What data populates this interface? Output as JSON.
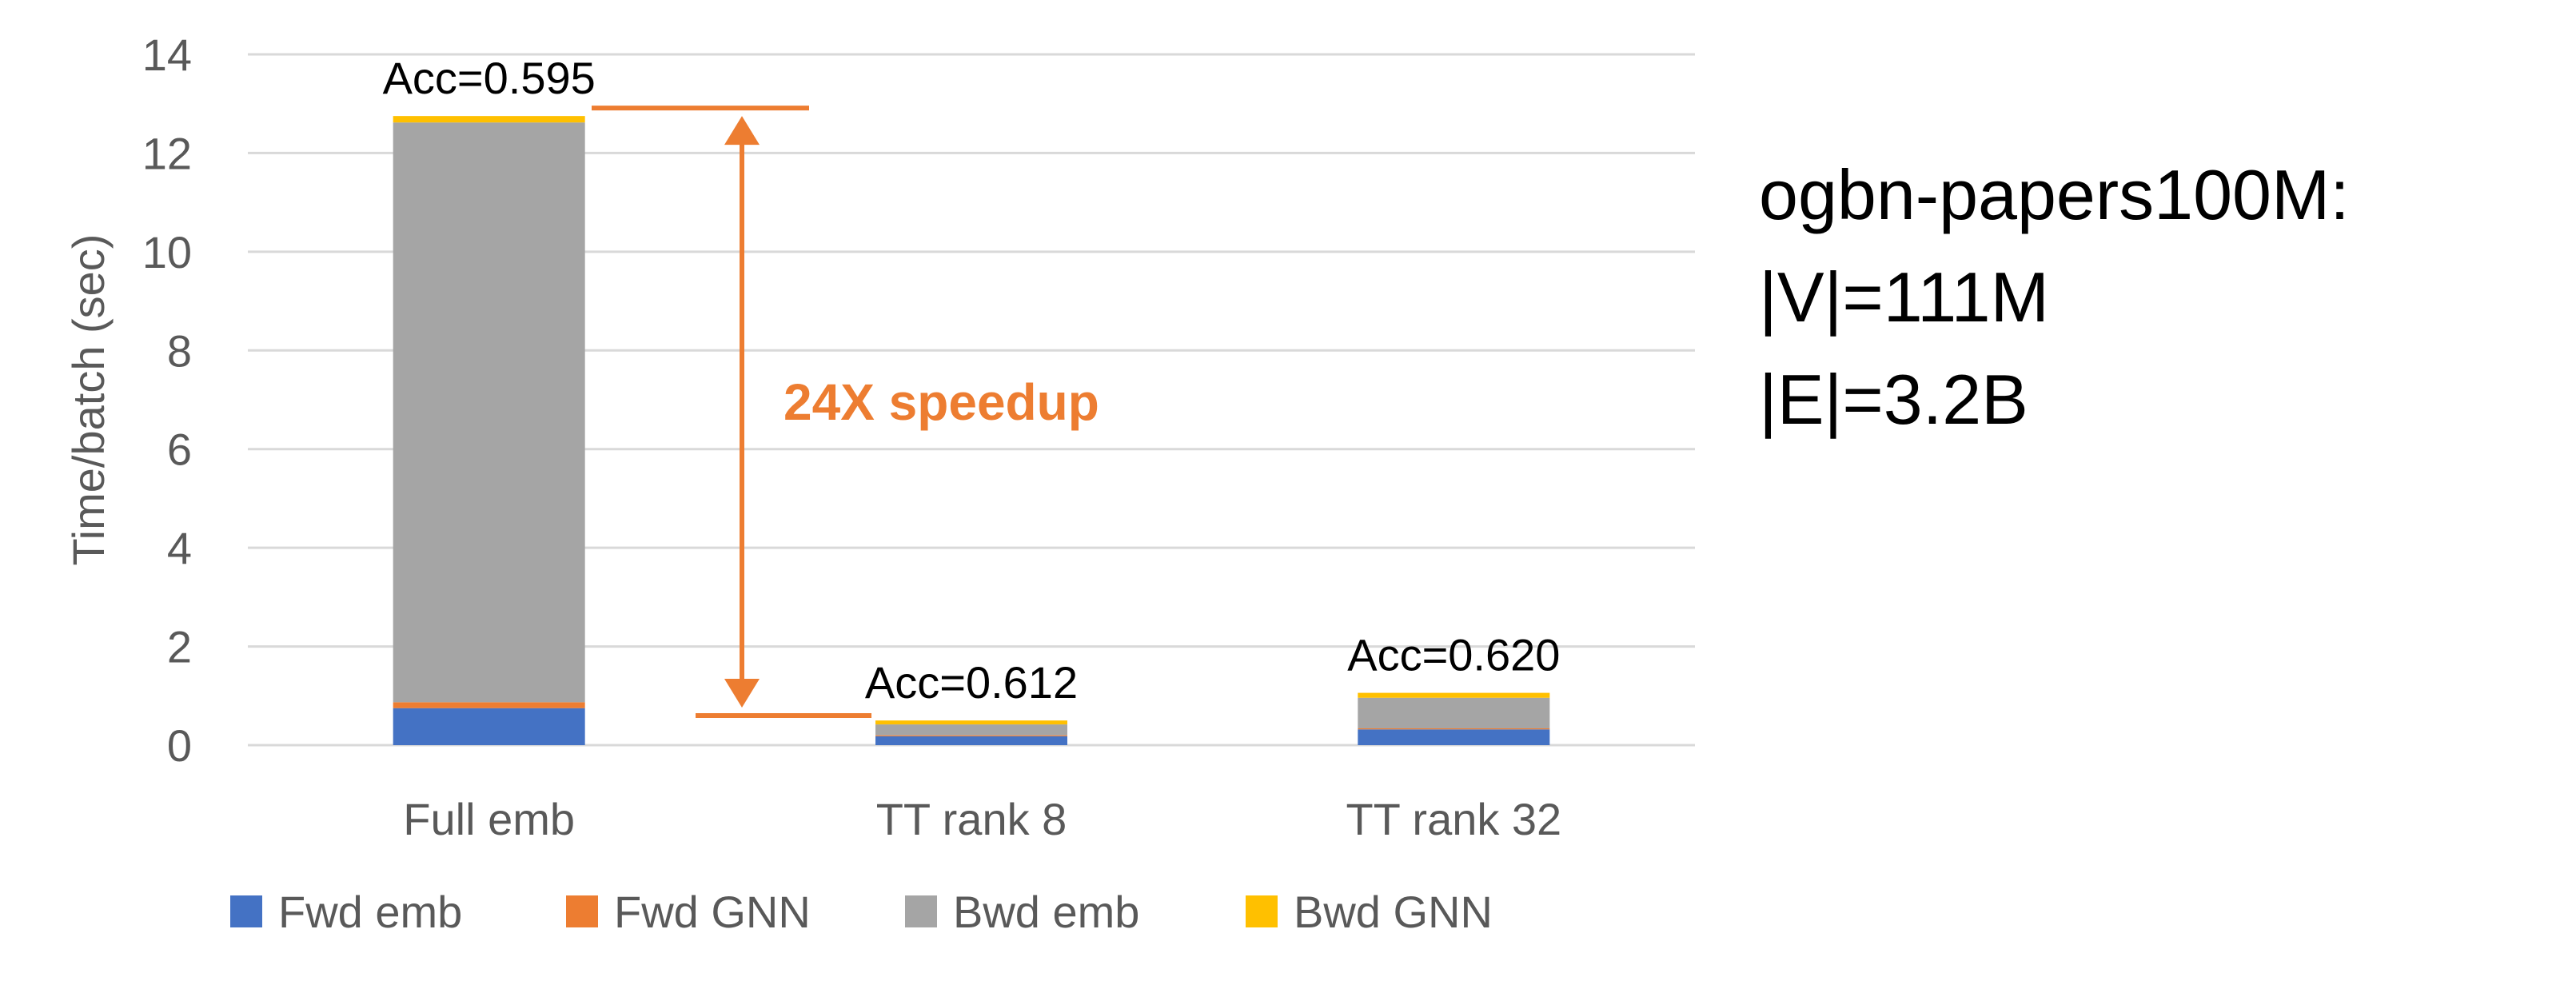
{
  "chart_data": {
    "type": "bar",
    "stacked": true,
    "categories": [
      "Full emb",
      "TT rank 8",
      "TT rank 32"
    ],
    "series": [
      {
        "name": "Fwd emb",
        "color": "#4472C4",
        "values": [
          0.75,
          0.18,
          0.32
        ]
      },
      {
        "name": "Fwd GNN",
        "color": "#ED7D31",
        "values": [
          0.12,
          0.02,
          0.02
        ]
      },
      {
        "name": "Bwd emb",
        "color": "#A5A5A5",
        "values": [
          11.75,
          0.22,
          0.62
        ]
      },
      {
        "name": "Bwd GNN",
        "color": "#FFC000",
        "values": [
          0.13,
          0.08,
          0.1
        ]
      }
    ],
    "data_labels": [
      "Acc=0.595",
      "Acc=0.612",
      "Acc=0.620"
    ],
    "ylabel": "Time/batch (sec)",
    "xlabel": "",
    "ylim": [
      0,
      14
    ],
    "yticks": [
      0,
      2,
      4,
      6,
      8,
      10,
      12,
      14
    ],
    "grid": true,
    "legend": "bottom",
    "annotation": {
      "text": "24X speedup",
      "color": "#ED7D31",
      "from_value": 12.75,
      "to_value": 0.6
    }
  },
  "dataset_info": {
    "lines": [
      "ogbn-papers100M:",
      "|V|=111M",
      "|E|=3.2B"
    ]
  }
}
